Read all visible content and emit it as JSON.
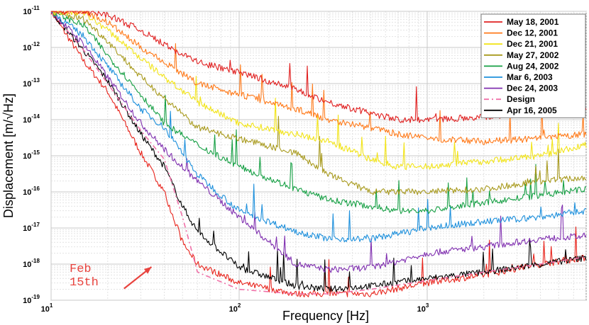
{
  "chart_data": {
    "type": "line",
    "title": "",
    "xlabel": "Frequency [Hz]",
    "ylabel": "Displacement [m/√Hz]",
    "xscale": "log",
    "yscale": "log",
    "xlim": [
      10,
      7000
    ],
    "ylim": [
      1e-19,
      1e-11
    ],
    "grid": true,
    "legend_position": "top-right",
    "x_ticks": [
      {
        "base": "10",
        "exp": "1",
        "value": 10
      },
      {
        "base": "10",
        "exp": "2",
        "value": 100
      },
      {
        "base": "10",
        "exp": "3",
        "value": 1000
      }
    ],
    "y_ticks": [
      {
        "base": "10",
        "exp": "-11",
        "value": 1e-11
      },
      {
        "base": "10",
        "exp": "-12",
        "value": 1e-12
      },
      {
        "base": "10",
        "exp": "-13",
        "value": 1e-13
      },
      {
        "base": "10",
        "exp": "-14",
        "value": 1e-14
      },
      {
        "base": "10",
        "exp": "-15",
        "value": 1e-15
      },
      {
        "base": "10",
        "exp": "-16",
        "value": 1e-16
      },
      {
        "base": "10",
        "exp": "-17",
        "value": 1e-17
      },
      {
        "base": "10",
        "exp": "-18",
        "value": 1e-18
      },
      {
        "base": "10",
        "exp": "-19",
        "value": 1e-19
      }
    ],
    "series": [
      {
        "name": "May 18, 2001",
        "color": "#e02020",
        "dash": "",
        "x": [
          10,
          15,
          20,
          30,
          40,
          60,
          100,
          200,
          300,
          500,
          700,
          1000,
          2000,
          4000,
          7000
        ],
        "y": [
          1e-11,
          1e-11,
          8e-12,
          3e-12,
          1.2e-12,
          4e-13,
          2e-13,
          7e-14,
          3e-14,
          1.5e-14,
          1e-14,
          1e-14,
          1.2e-14,
          1.5e-14,
          2e-14
        ]
      },
      {
        "name": "Dec 12, 2001",
        "color": "#ff7a1a",
        "dash": "",
        "x": [
          10,
          15,
          20,
          30,
          40,
          60,
          100,
          200,
          300,
          500,
          700,
          1000,
          2000,
          4000,
          7000
        ],
        "y": [
          1e-11,
          1e-11,
          5e-12,
          1e-12,
          4e-13,
          1e-13,
          5e-14,
          2e-14,
          1e-14,
          6e-15,
          4e-15,
          3e-15,
          2.5e-15,
          3e-15,
          4e-15
        ]
      },
      {
        "name": "Dec 21, 2001",
        "color": "#f2e418",
        "dash": "",
        "x": [
          10,
          15,
          20,
          30,
          40,
          60,
          100,
          200,
          300,
          500,
          700,
          1000,
          2000,
          4000,
          7000
        ],
        "y": [
          1e-11,
          9e-12,
          3e-12,
          5e-13,
          1.5e-13,
          3e-14,
          8e-15,
          4e-15,
          2.5e-15,
          8e-16,
          5e-16,
          5e-16,
          7e-16,
          1e-15,
          2e-15
        ]
      },
      {
        "name": "May 27, 2002",
        "color": "#a89a1e",
        "dash": "",
        "x": [
          10,
          15,
          20,
          30,
          40,
          60,
          100,
          200,
          300,
          500,
          700,
          1000,
          2000,
          4000,
          7000
        ],
        "y": [
          1e-11,
          6e-12,
          1.5e-12,
          1.5e-13,
          4e-14,
          6e-15,
          3e-15,
          1.2e-15,
          3e-16,
          1e-16,
          1e-16,
          1e-16,
          1.2e-16,
          2e-16,
          2.5e-16
        ]
      },
      {
        "name": "Aug 24, 2002",
        "color": "#17a045",
        "dash": "",
        "x": [
          10,
          15,
          20,
          30,
          40,
          60,
          100,
          200,
          300,
          500,
          700,
          1000,
          2000,
          4000,
          7000
        ],
        "y": [
          1e-11,
          4e-12,
          6e-13,
          5e-14,
          8e-15,
          2e-15,
          5e-16,
          1.2e-16,
          6e-17,
          4e-17,
          3e-17,
          3e-17,
          5e-17,
          8e-17,
          1.2e-16
        ]
      },
      {
        "name": "Mar  6, 2003",
        "color": "#1e90dc",
        "dash": "",
        "x": [
          10,
          15,
          20,
          30,
          40,
          60,
          100,
          200,
          300,
          500,
          700,
          1000,
          2000,
          4000,
          7000
        ],
        "y": [
          1e-11,
          2e-12,
          3e-13,
          2e-14,
          6e-15,
          3e-16,
          3e-17,
          8e-18,
          5e-18,
          5e-18,
          7e-18,
          1e-17,
          1.5e-17,
          2e-17,
          3e-17
        ]
      },
      {
        "name": "Dec 24, 2003",
        "color": "#8030b0",
        "dash": "",
        "x": [
          10,
          15,
          20,
          30,
          40,
          60,
          100,
          200,
          300,
          500,
          700,
          1000,
          2000,
          4000,
          7000
        ],
        "y": [
          1e-11,
          1.2e-12,
          1.5e-13,
          8e-15,
          1.5e-15,
          2e-16,
          2e-17,
          1e-18,
          7e-19,
          8e-19,
          1.2e-18,
          2e-18,
          3e-18,
          5e-18,
          6e-18
        ]
      },
      {
        "name": "Design",
        "color": "#f070a8",
        "dash": "7 4 2 4",
        "x": [
          10,
          15,
          20,
          30,
          40,
          50,
          60,
          100,
          200,
          300,
          500,
          1000,
          2000,
          4000,
          7000
        ],
        "y": [
          1e-11,
          8e-13,
          1e-13,
          5e-15,
          8e-16,
          2e-17,
          6e-19,
          2e-19,
          1.5e-19,
          1.5e-19,
          2e-19,
          3.5e-19,
          6e-19,
          1e-18,
          1.6e-18
        ]
      },
      {
        "name": "Apr 16, 2005",
        "color": "#000000",
        "dash": "",
        "x": [
          10,
          15,
          20,
          30,
          40,
          50,
          60,
          100,
          200,
          300,
          500,
          1000,
          2000,
          4000,
          7000
        ],
        "y": [
          1e-11,
          8e-13,
          1.2e-13,
          4e-15,
          5e-16,
          4e-17,
          8e-18,
          8e-19,
          2.5e-19,
          2e-19,
          2.5e-19,
          4e-19,
          6e-19,
          1e-18,
          1.5e-18
        ]
      },
      {
        "name": "",
        "color": "#e8241c",
        "dash": "",
        "x": [
          10,
          15,
          20,
          30,
          40,
          50,
          60,
          100,
          200,
          300,
          500,
          1000,
          2000,
          4000,
          7000
        ],
        "y": [
          1e-11,
          4e-13,
          6e-14,
          1.2e-15,
          1e-16,
          4e-18,
          1e-18,
          3e-19,
          1.5e-19,
          1.5e-19,
          1.5e-19,
          3e-19,
          5e-19,
          1e-18,
          1.5e-18
        ]
      }
    ],
    "annotations": [
      {
        "lines": [
          "Feb",
          "15th"
        ],
        "color": "#e8433e",
        "arrow_from": [
          22,
          3e-19
        ],
        "arrow_to": [
          36,
          1e-18
        ]
      }
    ]
  }
}
